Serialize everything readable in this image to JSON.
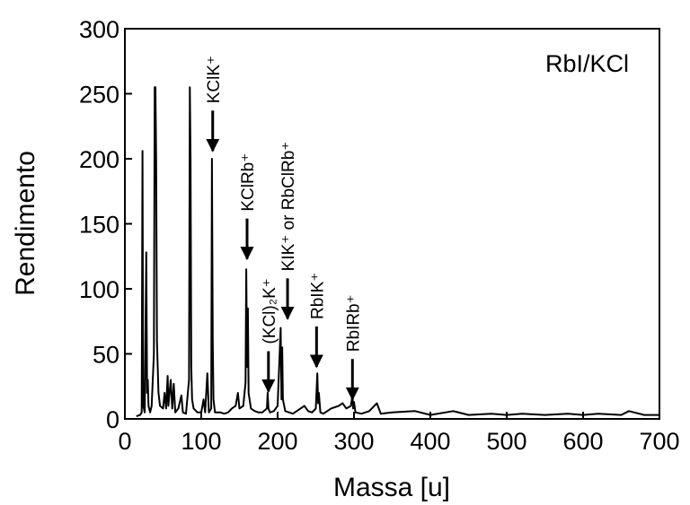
{
  "chart_data": {
    "type": "line",
    "label": "RbI/KCl",
    "xlabel": "Massa [u]",
    "ylabel": "Rendimento",
    "color": "#000000",
    "x": [
      15,
      20,
      22,
      23,
      24,
      26,
      28,
      29,
      30,
      31,
      33,
      35,
      38,
      39,
      40,
      41,
      42,
      44,
      46,
      50,
      52,
      54,
      56,
      57,
      60,
      62,
      64,
      66,
      70,
      74,
      76,
      80,
      84,
      85,
      86,
      87,
      88,
      90,
      95,
      100,
      103,
      105,
      108,
      110,
      113,
      114,
      115,
      116,
      118,
      125,
      130,
      135,
      140,
      145,
      148,
      150,
      155,
      158,
      159,
      160,
      161,
      162,
      165,
      170,
      175,
      180,
      186,
      187,
      188,
      190,
      195,
      200,
      204,
      205,
      206,
      207,
      210,
      220,
      230,
      235,
      240,
      245,
      250,
      252,
      253,
      254,
      256,
      260,
      270,
      280,
      285,
      290,
      296,
      298,
      299,
      300,
      302,
      310,
      320,
      330,
      335,
      350,
      380,
      400,
      430,
      450,
      480,
      500,
      520,
      550,
      580,
      600,
      620,
      650,
      660,
      680,
      700
    ],
    "values": [
      2,
      3,
      5,
      206,
      10,
      5,
      128,
      20,
      30,
      10,
      5,
      10,
      50,
      255,
      255,
      200,
      60,
      20,
      10,
      8,
      20,
      8,
      33,
      10,
      30,
      8,
      27,
      5,
      8,
      18,
      5,
      4,
      30,
      255,
      200,
      40,
      15,
      8,
      5,
      5,
      15,
      5,
      35,
      5,
      8,
      200,
      60,
      15,
      5,
      5,
      4,
      5,
      8,
      10,
      20,
      8,
      10,
      28,
      115,
      40,
      85,
      20,
      8,
      6,
      5,
      5,
      8,
      20,
      8,
      5,
      6,
      10,
      70,
      15,
      55,
      15,
      6,
      4,
      8,
      10,
      6,
      5,
      8,
      35,
      12,
      20,
      5,
      4,
      8,
      10,
      12,
      8,
      10,
      18,
      8,
      13,
      5,
      4,
      6,
      12,
      4,
      5,
      6,
      3,
      6,
      3,
      4,
      3,
      4,
      3,
      4,
      3,
      4,
      3,
      6,
      3,
      3
    ],
    "xlim": [
      0,
      700
    ],
    "ylim": [
      0,
      300
    ],
    "xticks": [
      0,
      100,
      200,
      300,
      400,
      500,
      600,
      700
    ],
    "yticks": [
      0,
      50,
      100,
      150,
      200,
      250,
      300
    ],
    "annotations": [
      {
        "text": "KClK⁺",
        "x": 115,
        "y": 206
      },
      {
        "text": "KClRb⁺",
        "x": 160,
        "y": 123
      },
      {
        "text": "(KCl)₂K⁺",
        "x": 188,
        "y": 21
      },
      {
        "text": "KIK⁺ or RbClRb⁺",
        "x": 213,
        "y": 77
      },
      {
        "text": "RbIK⁺",
        "x": 251,
        "y": 40
      },
      {
        "text": "RbIRb⁺",
        "x": 298,
        "y": 15
      }
    ]
  }
}
